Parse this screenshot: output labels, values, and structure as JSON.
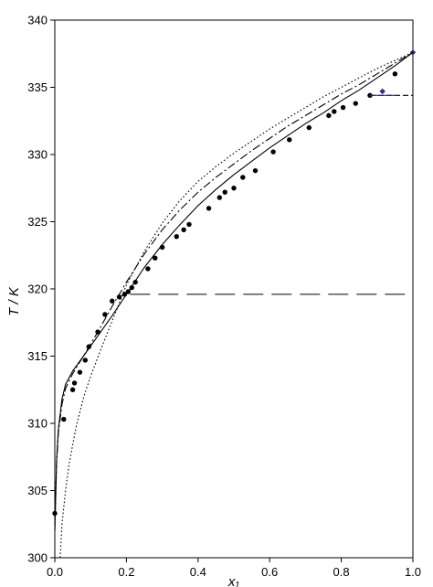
{
  "chart_data": {
    "type": "line",
    "title": "",
    "xlabel": "x₁",
    "ylabel": "T / K",
    "xlim": [
      0.0,
      1.0
    ],
    "ylim": [
      300,
      340
    ],
    "x_ticks": [
      "0.0",
      "0.2",
      "0.4",
      "0.6",
      "0.8",
      "1.0"
    ],
    "x_tick_values": [
      0.0,
      0.2,
      0.4,
      0.6,
      0.8,
      1.0
    ],
    "y_ticks": [
      "300",
      "305",
      "310",
      "315",
      "320",
      "325",
      "330",
      "335",
      "340"
    ],
    "y_tick_values": [
      300,
      305,
      310,
      315,
      320,
      325,
      330,
      335,
      340
    ],
    "grid": false,
    "legend": "none",
    "series": [
      {
        "kind": "points",
        "marker": "circle",
        "color": "#000000",
        "x": [
          0.0,
          0.025,
          0.05,
          0.055,
          0.07,
          0.085,
          0.095,
          0.12,
          0.14,
          0.16,
          0.18,
          0.195,
          0.205,
          0.215,
          0.225,
          0.26,
          0.28,
          0.3,
          0.34,
          0.36,
          0.375,
          0.43,
          0.46,
          0.475,
          0.5,
          0.525,
          0.56,
          0.61,
          0.655,
          0.71,
          0.765,
          0.78,
          0.805,
          0.84,
          0.88,
          0.95
        ],
        "y": [
          303.3,
          310.3,
          312.5,
          313.0,
          313.8,
          314.7,
          315.7,
          316.8,
          318.1,
          319.1,
          319.4,
          319.6,
          319.8,
          320.1,
          320.5,
          321.5,
          322.3,
          323.1,
          323.9,
          324.4,
          324.8,
          326.0,
          326.8,
          327.2,
          327.5,
          328.3,
          328.8,
          330.2,
          331.1,
          332.0,
          332.9,
          333.2,
          333.5,
          333.8,
          334.4,
          336.0
        ]
      },
      {
        "kind": "points",
        "marker": "diamond",
        "color": "#1f2f8a",
        "x": [
          0.915,
          1.0
        ],
        "y": [
          334.7,
          337.6
        ]
      },
      {
        "kind": "line",
        "style": "solid",
        "color": "#000000",
        "x": [
          0.0,
          0.005,
          0.01,
          0.02,
          0.03,
          0.05,
          0.08,
          0.12,
          0.16,
          0.2,
          0.25,
          0.3,
          0.35,
          0.4,
          0.45,
          0.5,
          0.55,
          0.6,
          0.65,
          0.7,
          0.75,
          0.8,
          0.85,
          0.9,
          0.95,
          1.0
        ],
        "y": [
          302.0,
          307.3,
          309.6,
          311.8,
          312.9,
          313.9,
          315.0,
          316.5,
          318.0,
          319.6,
          321.6,
          323.3,
          324.8,
          326.2,
          327.4,
          328.5,
          329.5,
          330.5,
          331.4,
          332.3,
          333.1,
          334.0,
          334.8,
          335.7,
          336.6,
          337.6
        ]
      },
      {
        "kind": "line",
        "style": "dashdot",
        "color": "#000000",
        "x": [
          0.0,
          0.005,
          0.01,
          0.02,
          0.03,
          0.05,
          0.08,
          0.12,
          0.16,
          0.2,
          0.25,
          0.3,
          0.35,
          0.4,
          0.45,
          0.5,
          0.55,
          0.6,
          0.65,
          0.7,
          0.75,
          0.8,
          0.85,
          0.9,
          0.95,
          1.0
        ],
        "y": [
          302.0,
          307.0,
          309.3,
          311.4,
          312.6,
          313.7,
          315.0,
          316.8,
          318.7,
          320.5,
          322.6,
          324.4,
          325.9,
          327.2,
          328.3,
          329.3,
          330.3,
          331.2,
          332.1,
          332.9,
          333.7,
          334.5,
          335.2,
          336.0,
          336.8,
          337.6
        ]
      },
      {
        "kind": "line",
        "style": "dotted",
        "color": "#000000",
        "x": [
          0.015,
          0.02,
          0.03,
          0.04,
          0.06,
          0.08,
          0.1,
          0.13,
          0.16,
          0.2,
          0.25,
          0.3,
          0.35,
          0.4,
          0.45,
          0.5,
          0.55,
          0.6,
          0.65,
          0.7,
          0.75,
          0.8,
          0.85,
          0.9,
          0.95,
          1.0
        ],
        "y": [
          300.0,
          302.5,
          305.0,
          307.0,
          309.8,
          311.9,
          313.5,
          315.6,
          317.6,
          320.3,
          322.8,
          324.9,
          326.6,
          328.0,
          329.1,
          330.1,
          331.0,
          331.9,
          332.7,
          333.5,
          334.3,
          335.0,
          335.7,
          336.4,
          337.0,
          337.6
        ]
      },
      {
        "kind": "line",
        "style": "longdash",
        "color": "#000000",
        "x": [
          0.21,
          1.0
        ],
        "y": [
          319.6,
          319.6
        ]
      },
      {
        "kind": "line",
        "style": "shortdash",
        "color": "#000000",
        "x": [
          0.88,
          1.0
        ],
        "y": [
          334.4,
          334.4
        ]
      },
      {
        "kind": "line",
        "style": "solid",
        "color": "#1f2f8a",
        "x": [
          0.88,
          0.955
        ],
        "y": [
          334.4,
          334.4
        ]
      }
    ]
  }
}
